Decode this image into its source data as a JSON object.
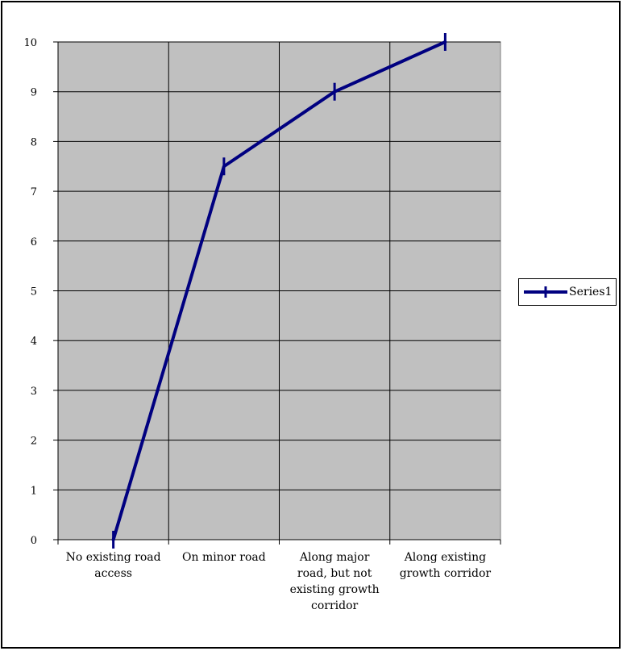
{
  "chart_data": {
    "type": "line",
    "categories": [
      "No existing road access",
      "On minor road",
      "Along major road, but not existing growth corridor",
      "Along existing growth corridor"
    ],
    "category_label_lines": [
      [
        "No existing road",
        "access"
      ],
      [
        "On minor road"
      ],
      [
        "Along major",
        "road, but not",
        "existing growth",
        "corridor"
      ],
      [
        "Along existing",
        "growth corridor"
      ]
    ],
    "series": [
      {
        "name": "Series1",
        "values": [
          0,
          7.5,
          9,
          10
        ]
      }
    ],
    "ylim": [
      0,
      10
    ],
    "yticks": [
      0,
      1,
      2,
      3,
      4,
      5,
      6,
      7,
      8,
      9,
      10
    ],
    "grid": true,
    "legend_position": "right",
    "colors": {
      "plot_background": "#c0c0c0",
      "series_line": "#000080",
      "gridline": "#000000"
    }
  },
  "legend": {
    "label": "Series1"
  }
}
